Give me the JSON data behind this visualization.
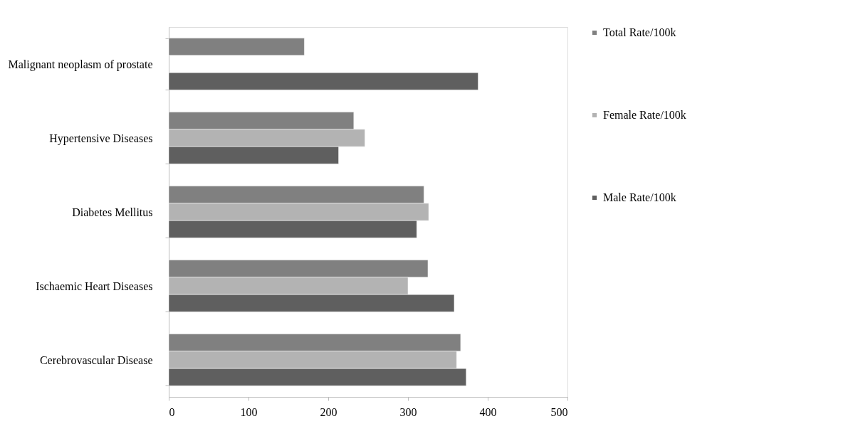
{
  "chart_data": {
    "type": "bar",
    "orientation": "horizontal",
    "categories": [
      "Malignant neoplasm of prostate",
      "Hypertensive Diseases",
      "Diabetes Mellitus",
      "Ischaemic Heart Diseases",
      "Cerebrovascular Disease"
    ],
    "series": [
      {
        "name": "Total Rate/100k",
        "color": "#808080",
        "values": [
          170,
          232,
          320,
          325,
          366
        ]
      },
      {
        "name": "Female Rate/100k",
        "color": "#b3b3b3",
        "values": [
          null,
          246,
          326,
          300,
          361
        ]
      },
      {
        "name": "Male Rate/100k",
        "color": "#5f5f5f",
        "values": [
          388,
          213,
          311,
          358,
          373
        ]
      }
    ],
    "xlim": [
      0,
      500
    ],
    "xticks": [
      0,
      100,
      200,
      300,
      400,
      500
    ],
    "grid": false,
    "legend": "right"
  }
}
